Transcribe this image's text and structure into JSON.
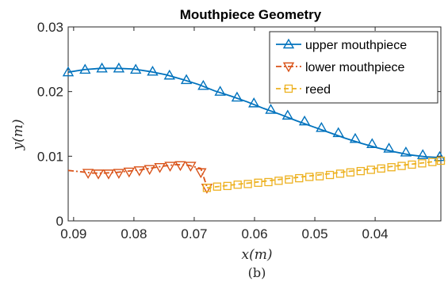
{
  "chart_data": {
    "type": "line",
    "title": "Mouthpiece Geometry",
    "xlabel": "x(m)",
    "ylabel": "y(m)",
    "caption": "(b)",
    "x_reversed": true,
    "xlim": [
      0.0909,
      0.0291
    ],
    "ylim": [
      0,
      0.03
    ],
    "xticks": [
      0.09,
      0.08,
      0.07,
      0.06,
      0.05,
      0.04
    ],
    "xtick_labels": [
      "0.09",
      "0.08",
      "0.07",
      "0.06",
      "0.05",
      "0.04"
    ],
    "yticks": [
      0,
      0.01,
      0.02,
      0.03
    ],
    "ytick_labels": [
      "0",
      "0.01",
      "0.02",
      "0.03"
    ],
    "grid": false,
    "legend_position": "top-right",
    "series": [
      {
        "name": "upper mouthpiece",
        "color": "#0072BD",
        "marker": "triangle-up",
        "line_style": "solid",
        "line_x": [
          0.0909,
          0.0882,
          0.0855,
          0.0828,
          0.0801,
          0.0774,
          0.0747,
          0.072,
          0.0693,
          0.0666,
          0.0639,
          0.0612,
          0.0585,
          0.0558,
          0.0531,
          0.0504,
          0.0477,
          0.045,
          0.0423,
          0.0396,
          0.0369,
          0.0342,
          0.0315,
          0.0291
        ],
        "line_y": [
          0.023,
          0.0234,
          0.0236,
          0.0236,
          0.0235,
          0.0231,
          0.0226,
          0.0219,
          0.0211,
          0.0201,
          0.0193,
          0.0184,
          0.0174,
          0.0165,
          0.0155,
          0.0146,
          0.0137,
          0.0128,
          0.012,
          0.0113,
          0.0107,
          0.0102,
          0.0099,
          0.0098
        ],
        "marker_x": [
          0.0909,
          0.0881,
          0.0853,
          0.0825,
          0.0797,
          0.0769,
          0.0741,
          0.0713,
          0.0685,
          0.0657,
          0.0629,
          0.0601,
          0.0573,
          0.0545,
          0.0517,
          0.0489,
          0.0461,
          0.0433,
          0.0405,
          0.0377,
          0.0349,
          0.0321,
          0.0293
        ],
        "marker_y": [
          0.023,
          0.0234,
          0.0236,
          0.0236,
          0.0234,
          0.0231,
          0.0225,
          0.0218,
          0.0209,
          0.02,
          0.0191,
          0.0182,
          0.0172,
          0.0163,
          0.0154,
          0.0144,
          0.0136,
          0.0127,
          0.0119,
          0.0112,
          0.0106,
          0.0102,
          0.0099
        ]
      },
      {
        "name": "lower mouthpiece",
        "color": "#D95319",
        "marker": "triangle-down",
        "line_style": "dashdot",
        "line_x": [
          0.0909,
          0.0889,
          0.0869,
          0.0849,
          0.0829,
          0.0809,
          0.0789,
          0.0769,
          0.0749,
          0.0729,
          0.0709,
          0.0689,
          0.0684,
          0.0679
        ],
        "line_y": [
          0.0078,
          0.0076,
          0.0074,
          0.0074,
          0.0075,
          0.0077,
          0.0079,
          0.0082,
          0.0085,
          0.0087,
          0.0086,
          0.0081,
          0.0067,
          0.0053
        ],
        "marker_x": [
          0.0876,
          0.0859,
          0.0842,
          0.0825,
          0.0808,
          0.0791,
          0.0774,
          0.0757,
          0.074,
          0.0723,
          0.0706,
          0.0689,
          0.0679
        ],
        "marker_y": [
          0.0074,
          0.0073,
          0.0073,
          0.0074,
          0.0076,
          0.0078,
          0.008,
          0.0083,
          0.0085,
          0.0086,
          0.0085,
          0.0075,
          0.0051
        ]
      },
      {
        "name": "reed",
        "color": "#EDB120",
        "marker": "square",
        "line_style": "dashed",
        "line_x": [
          0.0679,
          0.0291
        ],
        "line_y": [
          0.0051,
          0.0093
        ],
        "marker_x": [
          0.0679,
          0.0662,
          0.0645,
          0.0628,
          0.0611,
          0.0594,
          0.0577,
          0.056,
          0.0543,
          0.0526,
          0.0509,
          0.0492,
          0.0475,
          0.0458,
          0.0441,
          0.0424,
          0.0407,
          0.039,
          0.0373,
          0.0356,
          0.0339,
          0.0322,
          0.0305,
          0.0291
        ],
        "marker_y": [
          0.0051,
          0.0053,
          0.0054,
          0.0056,
          0.0057,
          0.0059,
          0.006,
          0.0062,
          0.0064,
          0.0066,
          0.0068,
          0.0069,
          0.0071,
          0.0073,
          0.0075,
          0.0077,
          0.0079,
          0.0081,
          0.0083,
          0.0085,
          0.0087,
          0.0089,
          0.0091,
          0.0093
        ]
      }
    ]
  }
}
